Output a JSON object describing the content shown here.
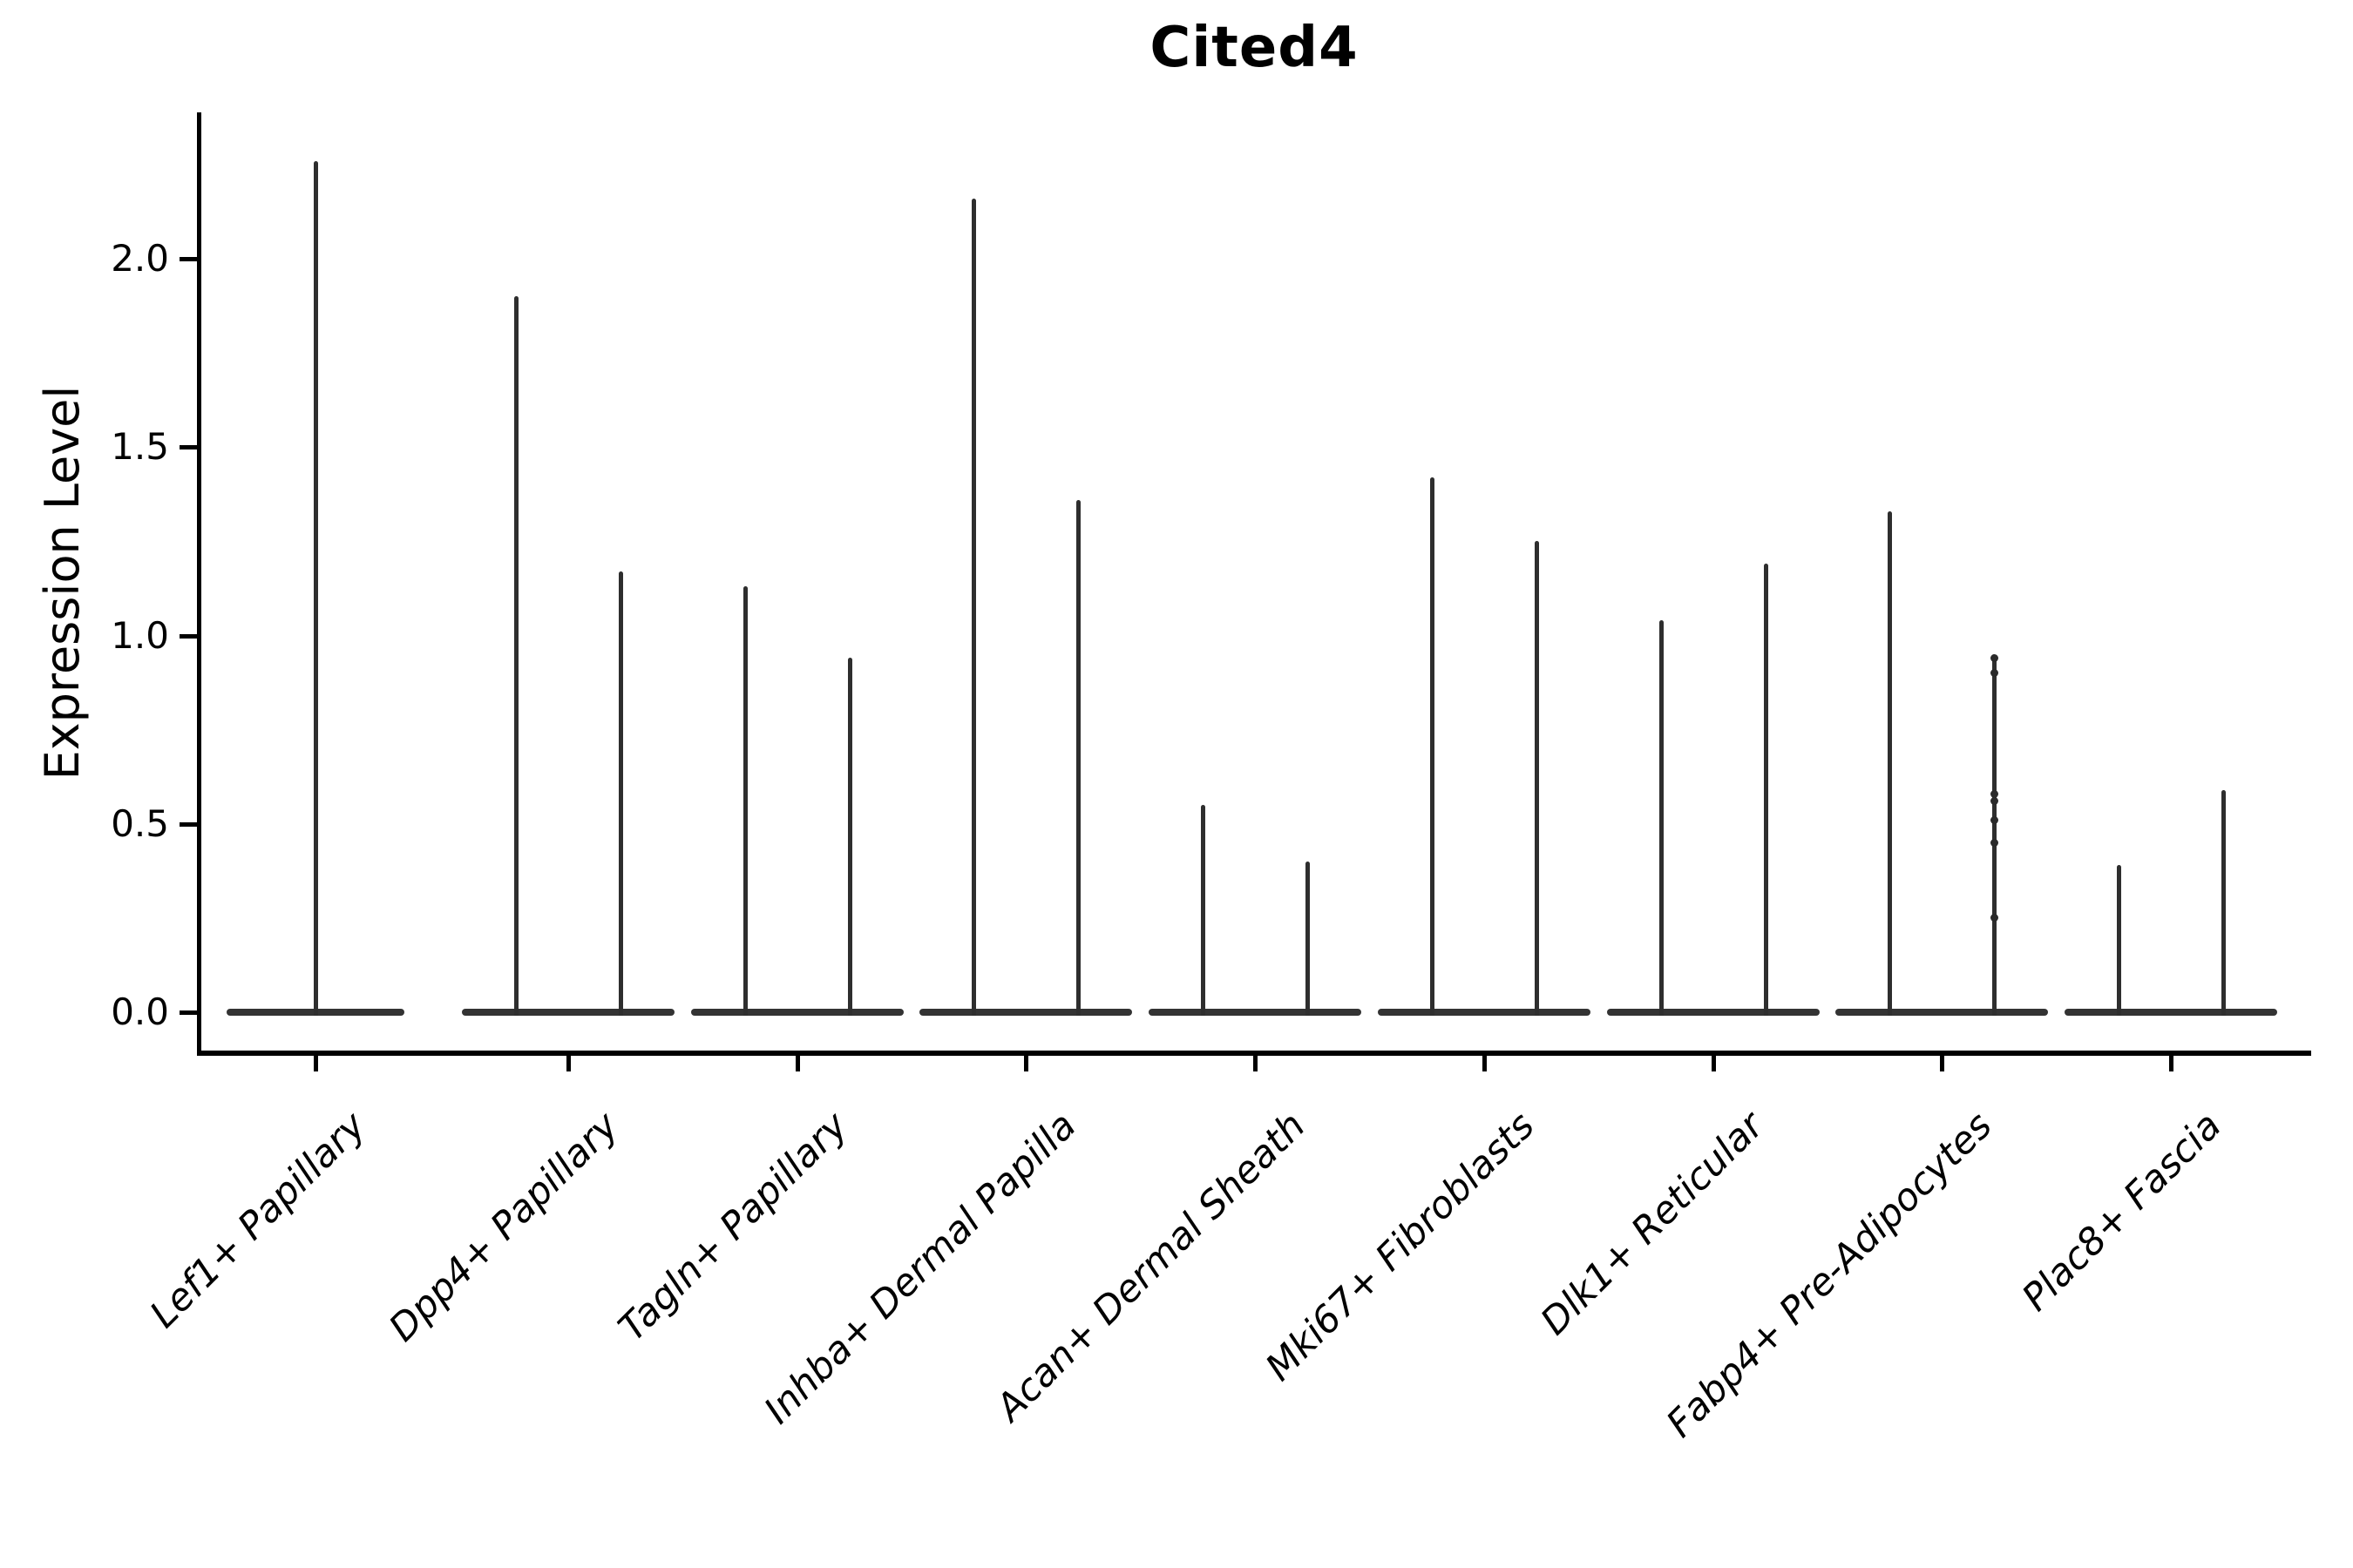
{
  "chart_data": {
    "type": "violin",
    "title": "Cited4",
    "ylabel": "Expression Level",
    "xlabel": "",
    "grid": false,
    "legend_position": "none",
    "ylim": [
      -0.1,
      2.39
    ],
    "yticks": [
      {
        "label": "0.0",
        "value": 0.0
      },
      {
        "label": "0.5",
        "value": 0.5
      },
      {
        "label": "1.0",
        "value": 1.0
      },
      {
        "label": "1.5",
        "value": 1.5
      },
      {
        "label": "2.0",
        "value": 2.0
      }
    ],
    "categories": [
      {
        "label": "Lef1+ Papillary",
        "violins": [
          {
            "position": "center",
            "max": 2.26
          }
        ]
      },
      {
        "label": "Dpp4+ Papillary",
        "violins": [
          {
            "position": "left",
            "max": 1.9
          },
          {
            "position": "right",
            "max": 1.17
          }
        ]
      },
      {
        "label": "Tagln+ Papillary",
        "violins": [
          {
            "position": "left",
            "max": 1.13
          },
          {
            "position": "right",
            "max": 0.94
          }
        ]
      },
      {
        "label": "Inhba+ Dermal Papilla",
        "violins": [
          {
            "position": "left",
            "max": 2.16
          },
          {
            "position": "right",
            "max": 1.36
          }
        ]
      },
      {
        "label": "Acan+ Dermal Sheath",
        "violins": [
          {
            "position": "left",
            "max": 0.55
          },
          {
            "position": "right",
            "max": 0.4
          }
        ]
      },
      {
        "label": "Mki67+ Fibroblasts",
        "violins": [
          {
            "position": "left",
            "max": 1.42
          },
          {
            "position": "right",
            "max": 1.25
          }
        ]
      },
      {
        "label": "Dlk1+ Reticular",
        "violins": [
          {
            "position": "left",
            "max": 1.04
          },
          {
            "position": "right",
            "max": 1.19
          }
        ]
      },
      {
        "label": "Fabp4+ Pre-Adipocytes",
        "violins": [
          {
            "position": "left",
            "max": 1.33
          },
          {
            "position": "right",
            "max": 0.94,
            "points": [
              0.94,
              0.9,
              0.58,
              0.56,
              0.51,
              0.45,
              0.25
            ]
          }
        ]
      },
      {
        "label": "Plac8+ Fascia",
        "violins": [
          {
            "position": "left",
            "max": 0.39
          },
          {
            "position": "right",
            "max": 0.59
          }
        ]
      }
    ],
    "colors": {
      "violin_base": "#333333",
      "violin_spike": "#2e2e2e",
      "axis": "#000000"
    }
  }
}
